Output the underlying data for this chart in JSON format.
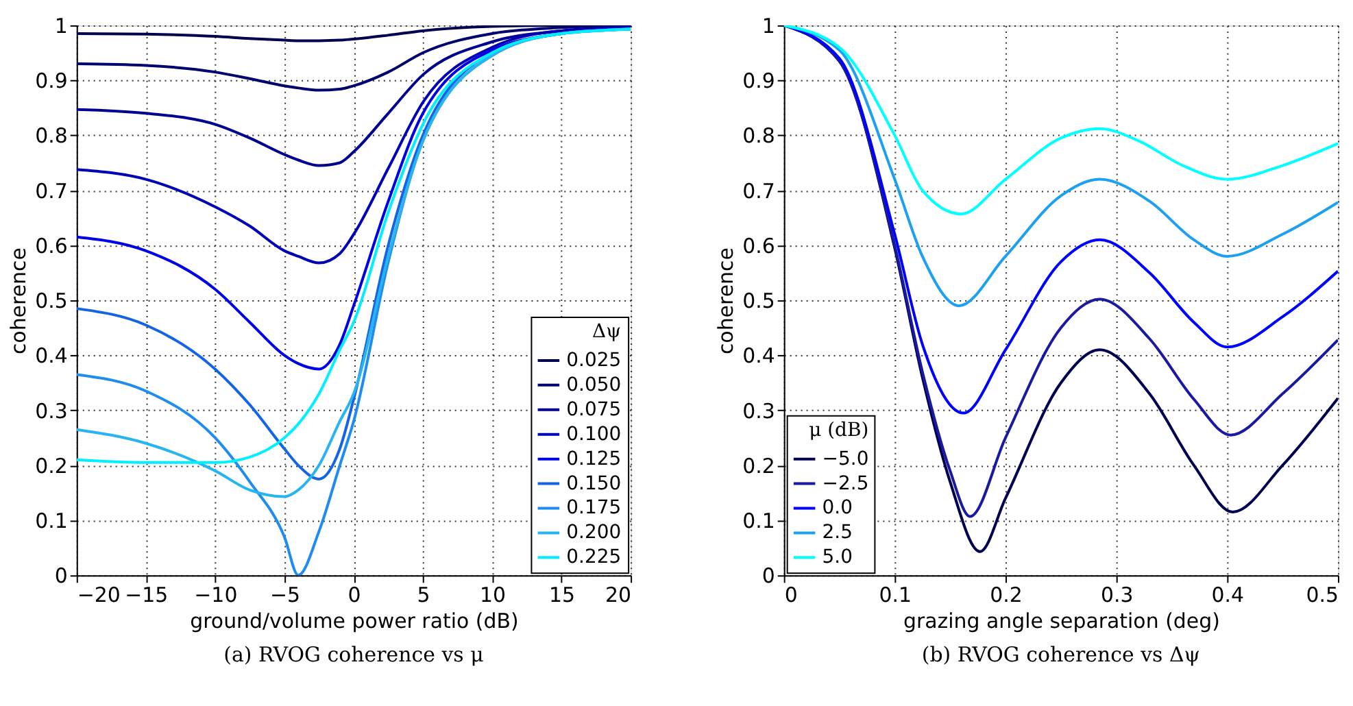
{
  "chart_data": [
    {
      "type": "line",
      "xlabel": "ground/volume power ratio (dB)",
      "ylabel": "coherence",
      "legend_title": "Δψ",
      "legend": "bottom right",
      "grid": true,
      "line_style": "solid",
      "marker": "none",
      "xlim": [
        -20,
        20
      ],
      "xticks": [
        -20,
        -15,
        -10,
        -5,
        0,
        5,
        10,
        15,
        20
      ],
      "ylim": [
        0,
        1
      ],
      "yticks": [
        0,
        0.1,
        0.2,
        0.3,
        0.4,
        0.5,
        0.6,
        0.7,
        0.8,
        0.9,
        1
      ],
      "x": [
        -20,
        -15,
        -10,
        -7.5,
        -5,
        -4,
        -2.5,
        -1,
        0,
        2.5,
        5,
        10,
        15,
        20
      ],
      "series": [
        {
          "name": "0.025",
          "color": "#000050",
          "values": [
            0.985,
            0.984,
            0.98,
            0.976,
            0.973,
            0.972,
            0.972,
            0.973,
            0.975,
            0.982,
            0.99,
            0.998,
            1.0,
            1.0
          ]
        },
        {
          "name": "0.050",
          "color": "#00006e",
          "values": [
            0.93,
            0.927,
            0.915,
            0.903,
            0.89,
            0.886,
            0.882,
            0.884,
            0.89,
            0.915,
            0.95,
            0.985,
            0.996,
            1.0
          ]
        },
        {
          "name": "0.075",
          "color": "#000090",
          "values": [
            0.847,
            0.84,
            0.82,
            0.795,
            0.765,
            0.755,
            0.745,
            0.75,
            0.77,
            0.84,
            0.91,
            0.97,
            0.99,
            0.998
          ]
        },
        {
          "name": "0.100",
          "color": "#0000b4",
          "values": [
            0.738,
            0.72,
            0.67,
            0.635,
            0.59,
            0.58,
            0.568,
            0.585,
            0.62,
            0.74,
            0.86,
            0.96,
            0.99,
            0.995
          ]
        },
        {
          "name": "0.125",
          "color": "#0000e6",
          "values": [
            0.615,
            0.59,
            0.52,
            0.46,
            0.4,
            0.385,
            0.375,
            0.42,
            0.49,
            0.68,
            0.84,
            0.955,
            0.985,
            0.995
          ]
        },
        {
          "name": "0.150",
          "color": "#1464e6",
          "values": [
            0.485,
            0.455,
            0.375,
            0.31,
            0.23,
            0.2,
            0.175,
            0.23,
            0.32,
            0.6,
            0.8,
            0.95,
            0.985,
            0.993
          ]
        },
        {
          "name": "0.175",
          "color": "#1e8cf0",
          "values": [
            0.365,
            0.335,
            0.25,
            0.17,
            0.07,
            0.0,
            0.08,
            0.2,
            0.28,
            0.57,
            0.79,
            0.945,
            0.985,
            0.993
          ]
        },
        {
          "name": "0.200",
          "color": "#28b4f0",
          "values": [
            0.265,
            0.24,
            0.19,
            0.155,
            0.143,
            0.155,
            0.2,
            0.28,
            0.33,
            0.58,
            0.79,
            0.945,
            0.985,
            0.993
          ]
        },
        {
          "name": "0.225",
          "color": "#00f0ff",
          "values": [
            0.21,
            0.205,
            0.205,
            0.215,
            0.25,
            0.275,
            0.33,
            0.41,
            0.46,
            0.66,
            0.82,
            0.95,
            0.985,
            0.993
          ]
        }
      ],
      "annotations": [
        "(a)  RVOG coherence vs μ"
      ]
    },
    {
      "type": "line",
      "xlabel": "grazing angle separation (deg)",
      "ylabel": "coherence",
      "legend_title": "μ (dB)",
      "legend": "bottom left",
      "grid": true,
      "line_style": "solid",
      "marker": "none",
      "xlim": [
        0,
        0.5
      ],
      "xticks": [
        0,
        0.1,
        0.2,
        0.3,
        0.4,
        0.5
      ],
      "ylim": [
        0,
        1
      ],
      "yticks": [
        0,
        0.1,
        0.2,
        0.3,
        0.4,
        0.5,
        0.6,
        0.7,
        0.8,
        0.9,
        1
      ],
      "series": [
        {
          "name": "−5.0",
          "color": "#000050",
          "x": [
            0,
            0.05,
            0.1,
            0.125,
            0.15,
            0.177,
            0.2,
            0.25,
            0.285,
            0.33,
            0.37,
            0.405,
            0.45,
            0.5
          ],
          "values": [
            1,
            0.935,
            0.595,
            0.36,
            0.17,
            0.043,
            0.14,
            0.35,
            0.41,
            0.33,
            0.2,
            0.115,
            0.2,
            0.322
          ]
        },
        {
          "name": "−2.5",
          "color": "#1a1aa0",
          "x": [
            0,
            0.05,
            0.1,
            0.125,
            0.15,
            0.168,
            0.2,
            0.25,
            0.285,
            0.33,
            0.37,
            0.403,
            0.45,
            0.5
          ],
          "values": [
            1,
            0.935,
            0.6,
            0.37,
            0.19,
            0.107,
            0.25,
            0.45,
            0.502,
            0.43,
            0.32,
            0.255,
            0.33,
            0.428
          ]
        },
        {
          "name": "0.0",
          "color": "#0000ff",
          "x": [
            0,
            0.05,
            0.1,
            0.125,
            0.162,
            0.2,
            0.25,
            0.285,
            0.33,
            0.37,
            0.4,
            0.45,
            0.5
          ],
          "values": [
            1,
            0.94,
            0.62,
            0.42,
            0.295,
            0.41,
            0.57,
            0.61,
            0.55,
            0.46,
            0.415,
            0.47,
            0.553
          ]
        },
        {
          "name": "2.5",
          "color": "#1ea0f0",
          "x": [
            0,
            0.05,
            0.1,
            0.125,
            0.158,
            0.2,
            0.25,
            0.285,
            0.33,
            0.37,
            0.4,
            0.45,
            0.5
          ],
          "values": [
            1,
            0.955,
            0.72,
            0.58,
            0.49,
            0.58,
            0.69,
            0.72,
            0.68,
            0.61,
            0.58,
            0.62,
            0.678
          ]
        },
        {
          "name": "5.0",
          "color": "#00ffff",
          "x": [
            0,
            0.05,
            0.1,
            0.125,
            0.16,
            0.2,
            0.25,
            0.285,
            0.32,
            0.36,
            0.4,
            0.45,
            0.5
          ],
          "values": [
            1,
            0.96,
            0.8,
            0.7,
            0.657,
            0.72,
            0.795,
            0.812,
            0.79,
            0.745,
            0.72,
            0.745,
            0.785
          ]
        }
      ],
      "annotations": [
        "(b)  RVOG coherence vs Δψ"
      ]
    }
  ]
}
